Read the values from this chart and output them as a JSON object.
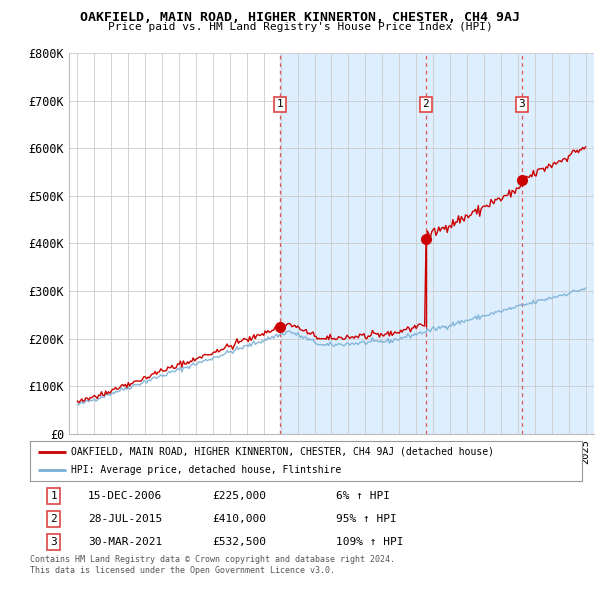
{
  "title": "OAKFIELD, MAIN ROAD, HIGHER KINNERTON, CHESTER, CH4 9AJ",
  "subtitle": "Price paid vs. HM Land Registry's House Price Index (HPI)",
  "ylabel_ticks": [
    "£0",
    "£100K",
    "£200K",
    "£300K",
    "£400K",
    "£500K",
    "£600K",
    "£700K",
    "£800K"
  ],
  "ytick_values": [
    0,
    100000,
    200000,
    300000,
    400000,
    500000,
    600000,
    700000,
    800000
  ],
  "ylim": [
    0,
    800000
  ],
  "xlim_start": 1994.5,
  "xlim_end": 2025.5,
  "sale_dates": [
    2006.96,
    2015.57,
    2021.25
  ],
  "sale_prices": [
    225000,
    410000,
    532500
  ],
  "sale_labels": [
    "1",
    "2",
    "3"
  ],
  "sale_pcts": [
    "6% ↑ HPI",
    "95% ↑ HPI",
    "109% ↑ HPI"
  ],
  "sale_date_strs": [
    "15-DEC-2006",
    "28-JUL-2015",
    "30-MAR-2021"
  ],
  "sale_price_strs": [
    "£225,000",
    "£410,000",
    "£532,500"
  ],
  "legend_line1": "OAKFIELD, MAIN ROAD, HIGHER KINNERTON, CHESTER, CH4 9AJ (detached house)",
  "legend_line2": "HPI: Average price, detached house, Flintshire",
  "footnote1": "Contains HM Land Registry data © Crown copyright and database right 2024.",
  "footnote2": "This data is licensed under the Open Government Licence v3.0.",
  "red_line_color": "#cc0000",
  "blue_line_color": "#7ab0d4",
  "shade_color": "#ddeeff",
  "background_color": "#ffffff",
  "grid_color": "#cccccc",
  "vline_color": "#dd4444",
  "table_rows": [
    [
      "1",
      "15-DEC-2006",
      "£225,000",
      "6% ↑ HPI"
    ],
    [
      "2",
      "28-JUL-2015",
      "£410,000",
      "95% ↑ HPI"
    ],
    [
      "3",
      "30-MAR-2021",
      "£532,500",
      "109% ↑ HPI"
    ]
  ]
}
